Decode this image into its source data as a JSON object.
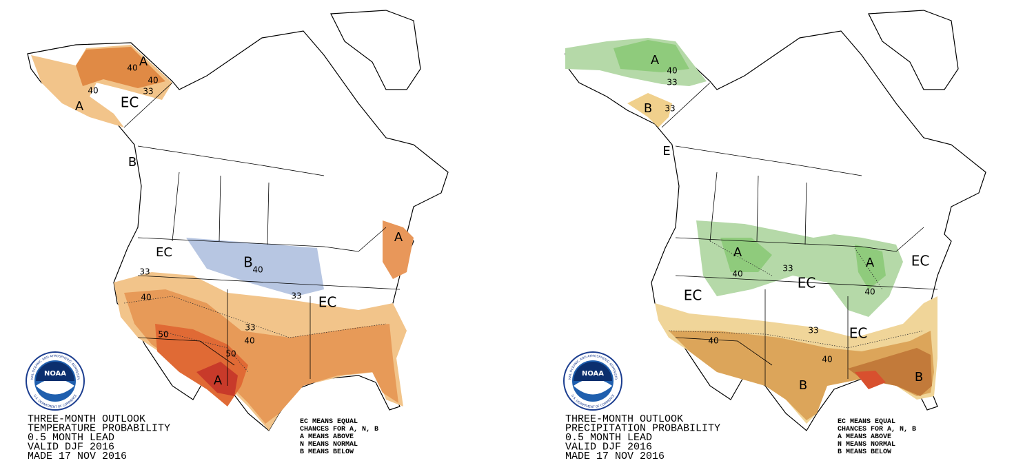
{
  "maps": [
    {
      "caption": [
        "THREE-MONTH OUTLOOK",
        "TEMPERATURE PROBABILITY",
        "0.5 MONTH LEAD",
        "VALID DJF 2016",
        "MADE 17 NOV 2016"
      ],
      "legend": [
        "EC MEANS EQUAL",
        "CHANCES FOR A, N, B",
        "A MEANS ABOVE",
        "N MEANS NORMAL",
        "B MEANS BELOW"
      ],
      "labels": [
        "A",
        "40",
        "40",
        "40",
        "A",
        "EC",
        "33",
        "B",
        "EC",
        "33",
        "40",
        "B",
        "40",
        "33",
        "EC",
        "33",
        "40",
        "50",
        "50",
        "A",
        "A"
      ],
      "logo": {
        "name": "NOAA",
        "top": "NATIONAL OCEANIC AND ATMOSPHERIC ADMINISTRATION",
        "bottom": "U.S. DEPARTMENT OF COMMERCE"
      }
    },
    {
      "caption": [
        "THREE-MONTH OUTLOOK",
        "PRECIPITATION PROBABILITY",
        "0.5 MONTH LEAD",
        "VALID DJF 2016",
        "MADE 17 NOV 2016"
      ],
      "legend": [
        "EC MEANS EQUAL",
        "CHANCES FOR A, N, B",
        "A MEANS ABOVE",
        "N MEANS NORMAL",
        "B MEANS BELOW"
      ],
      "labels": [
        "A",
        "40",
        "33",
        "B",
        "33",
        "E",
        "A",
        "40",
        "33",
        "EC",
        "A",
        "40",
        "EC",
        "EC",
        "40",
        "33",
        "EC",
        "40",
        "B",
        "B"
      ],
      "logo": {
        "name": "NOAA",
        "top": "NATIONAL OCEANIC AND ATMOSPHERIC ADMINISTRATION",
        "bottom": "U.S. DEPARTMENT OF COMMERCE"
      }
    }
  ]
}
